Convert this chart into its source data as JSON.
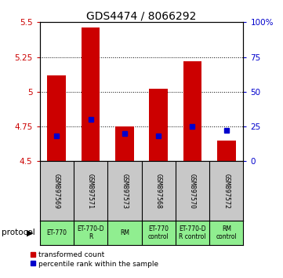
{
  "title": "GDS4474 / 8066292",
  "samples": [
    "GSM897569",
    "GSM897571",
    "GSM897573",
    "GSM897568",
    "GSM897570",
    "GSM897572"
  ],
  "red_bar_tops": [
    5.12,
    5.46,
    4.75,
    5.02,
    5.22,
    4.65
  ],
  "red_bar_bottom": 4.5,
  "blue_percentile": [
    18,
    30,
    20,
    18,
    25,
    22
  ],
  "ylim_left": [
    4.5,
    5.5
  ],
  "ylim_right": [
    0,
    100
  ],
  "yticks_left": [
    4.5,
    4.75,
    5.0,
    5.25,
    5.5
  ],
  "yticks_right": [
    0,
    25,
    50,
    75,
    100
  ],
  "ytick_labels_left": [
    "4.5",
    "4.75",
    "5",
    "5.25",
    "5.5"
  ],
  "ytick_labels_right": [
    "0",
    "25",
    "50",
    "75",
    "100%"
  ],
  "grid_lines": [
    4.75,
    5.0,
    5.25
  ],
  "protocol_labels": [
    "ET-770",
    "ET-770-D\nR",
    "RM",
    "ET-770\ncontrol",
    "ET-770-D\nR control",
    "RM\ncontrol"
  ],
  "bar_width": 0.55,
  "red_color": "#cc0000",
  "blue_color": "#0000cc",
  "bg_color_plot": "#ffffff",
  "bg_color_sample": "#c8c8c8",
  "bg_color_protocol": "#90ee90",
  "legend_red_label": "transformed count",
  "legend_blue_label": "percentile rank within the sample",
  "title_fontsize": 10,
  "tick_fontsize": 7.5
}
